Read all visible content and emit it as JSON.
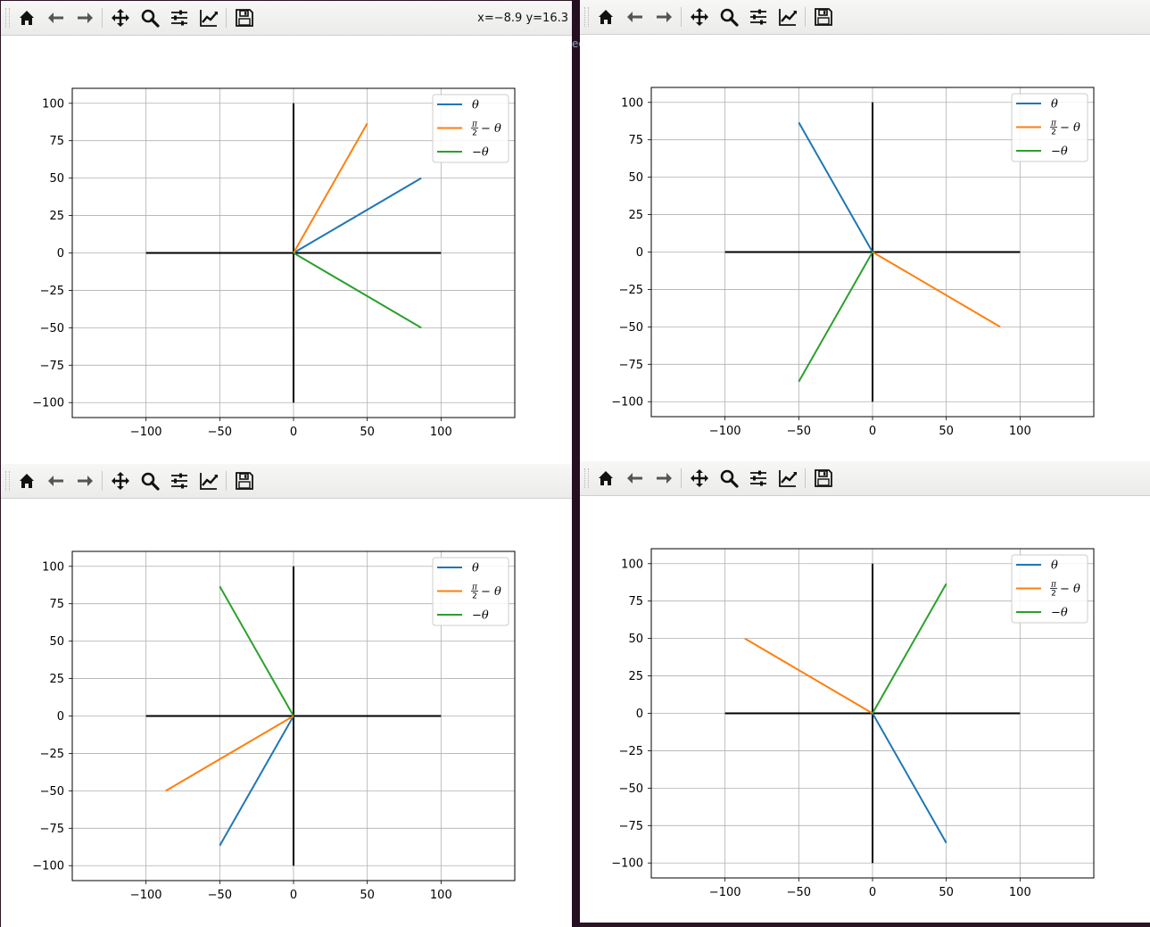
{
  "coords_text": "x=−8.9 y=16.3",
  "partial_text": "ec",
  "toolbar_icons": [
    "home-icon",
    "back-arrow-icon",
    "forward-arrow-icon",
    "pan-icon",
    "zoom-icon",
    "configure-subplots-icon",
    "edit-axis-icon",
    "save-icon"
  ],
  "colors": {
    "theta": "#1f77b4",
    "half_pi_minus_theta": "#ff7f0e",
    "neg_theta": "#2ca02c",
    "axes_lines": "#000000",
    "grid": "#b0b0b0"
  },
  "legend": {
    "theta": "θ",
    "half_pi_minus_theta": "π/2 − θ",
    "neg_theta": "−θ"
  },
  "chart_data": [
    {
      "type": "line",
      "window": "top-left",
      "xlim": [
        -150,
        150
      ],
      "ylim": [
        -110,
        110
      ],
      "xticks": [
        "−100",
        "−50",
        "0",
        "50",
        "100"
      ],
      "yticks": [
        "100",
        "75",
        "50",
        "25",
        "0",
        "−25",
        "−50",
        "−75",
        "−100"
      ],
      "grid": true,
      "legend_position": "top-right",
      "series": [
        {
          "name": "θ",
          "key": "theta",
          "x": [
            0,
            86.6
          ],
          "y": [
            0,
            50
          ]
        },
        {
          "name": "π/2 − θ",
          "key": "half_pi_minus_theta",
          "x": [
            0,
            50
          ],
          "y": [
            0,
            86.6
          ]
        },
        {
          "name": "−θ",
          "key": "neg_theta",
          "x": [
            0,
            86.6
          ],
          "y": [
            0,
            -50
          ]
        }
      ],
      "axis_lines": [
        {
          "x": [
            -100,
            100
          ],
          "y": [
            0,
            0
          ]
        },
        {
          "x": [
            0,
            0
          ],
          "y": [
            -100,
            100
          ]
        }
      ]
    },
    {
      "type": "line",
      "window": "top-right",
      "xlim": [
        -150,
        150
      ],
      "ylim": [
        -110,
        110
      ],
      "xticks": [
        "−100",
        "−50",
        "0",
        "50",
        "100"
      ],
      "yticks": [
        "100",
        "75",
        "50",
        "25",
        "0",
        "−25",
        "−50",
        "−75",
        "−100"
      ],
      "grid": true,
      "legend_position": "top-right",
      "series": [
        {
          "name": "θ",
          "key": "theta",
          "x": [
            0,
            -50
          ],
          "y": [
            0,
            86.6
          ]
        },
        {
          "name": "π/2 − θ",
          "key": "half_pi_minus_theta",
          "x": [
            0,
            86.6
          ],
          "y": [
            0,
            -50
          ]
        },
        {
          "name": "−θ",
          "key": "neg_theta",
          "x": [
            0,
            -50
          ],
          "y": [
            0,
            -86.6
          ]
        }
      ],
      "axis_lines": [
        {
          "x": [
            -100,
            100
          ],
          "y": [
            0,
            0
          ]
        },
        {
          "x": [
            0,
            0
          ],
          "y": [
            -100,
            100
          ]
        }
      ]
    },
    {
      "type": "line",
      "window": "bottom-left",
      "xlim": [
        -150,
        150
      ],
      "ylim": [
        -110,
        110
      ],
      "xticks": [
        "−100",
        "−50",
        "0",
        "50",
        "100"
      ],
      "yticks": [
        "100",
        "75",
        "50",
        "25",
        "0",
        "−25",
        "−50",
        "−75",
        "−100"
      ],
      "grid": true,
      "legend_position": "top-right",
      "series": [
        {
          "name": "θ",
          "key": "theta",
          "x": [
            0,
            -50
          ],
          "y": [
            0,
            -86.6
          ]
        },
        {
          "name": "π/2 − θ",
          "key": "half_pi_minus_theta",
          "x": [
            0,
            -86.6
          ],
          "y": [
            0,
            -50
          ]
        },
        {
          "name": "−θ",
          "key": "neg_theta",
          "x": [
            0,
            -50
          ],
          "y": [
            0,
            86.6
          ]
        }
      ],
      "axis_lines": [
        {
          "x": [
            -100,
            100
          ],
          "y": [
            0,
            0
          ]
        },
        {
          "x": [
            0,
            0
          ],
          "y": [
            -100,
            100
          ]
        }
      ]
    },
    {
      "type": "line",
      "window": "bottom-right",
      "xlim": [
        -150,
        150
      ],
      "ylim": [
        -110,
        110
      ],
      "xticks": [
        "−100",
        "−50",
        "0",
        "50",
        "100"
      ],
      "yticks": [
        "100",
        "75",
        "50",
        "25",
        "0",
        "−25",
        "−50",
        "−75",
        "−100"
      ],
      "grid": true,
      "legend_position": "top-right",
      "series": [
        {
          "name": "θ",
          "key": "theta",
          "x": [
            0,
            50
          ],
          "y": [
            0,
            -86.6
          ]
        },
        {
          "name": "π/2 − θ",
          "key": "half_pi_minus_theta",
          "x": [
            0,
            -86.6
          ],
          "y": [
            0,
            50
          ]
        },
        {
          "name": "−θ",
          "key": "neg_theta",
          "x": [
            0,
            50
          ],
          "y": [
            0,
            86.6
          ]
        }
      ],
      "axis_lines": [
        {
          "x": [
            -100,
            100
          ],
          "y": [
            0,
            0
          ]
        },
        {
          "x": [
            0,
            0
          ],
          "y": [
            -100,
            100
          ]
        }
      ]
    }
  ]
}
